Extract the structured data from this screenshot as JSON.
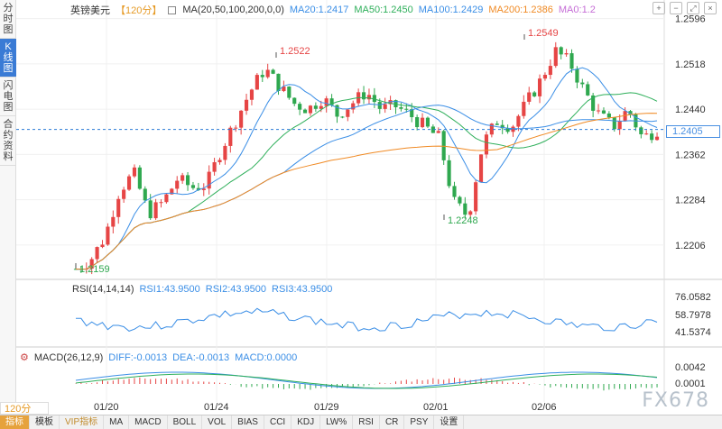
{
  "sidebar": {
    "tabs": [
      {
        "label": "分时图"
      },
      {
        "label": "K线图"
      },
      {
        "label": "闪电图"
      },
      {
        "label": "合约资料"
      }
    ]
  },
  "legend": {
    "symbol": "英镑美元",
    "period": "【120分】",
    "ma_label": "MA(20,50,100,200,0,0)",
    "ma20": "MA20:1.2417",
    "ma50": "MA50:1.2450",
    "ma100": "MA100:1.2429",
    "ma200": "MA200:1.2386",
    "ma0": "MA0:1.2"
  },
  "colors": {
    "up": "#e64545",
    "down": "#2fa84f",
    "ma20": "#3a8ee6",
    "ma50": "#2eaf5a",
    "ma100": "#3a8ee6",
    "ma200": "#f08a24",
    "ma0": "#c56dd6",
    "dashed": "#2a7ad6"
  },
  "price_axis": [
    "1.2596",
    "1.2518",
    "1.2440",
    "1.2362",
    "1.2284",
    "1.2206"
  ],
  "current_price": "1.2405",
  "annotations": {
    "low1": "1.2159",
    "high1": "1.2522",
    "low2": "1.2248",
    "high2": "1.2549"
  },
  "rsi": {
    "label": "RSI(14,14,14)",
    "rsi1": "RSI1:43.9500",
    "rsi2": "RSI2:43.9500",
    "rsi3": "RSI3:43.9500",
    "axis": [
      "76.0582",
      "58.7978",
      "41.5374"
    ]
  },
  "macd": {
    "label": "MACD(26,12,9)",
    "diff": "DIFF:-0.0013",
    "dea": "DEA:-0.0013",
    "macd": "MACD:0.0000",
    "axis": [
      "0.0042",
      "0.0001"
    ]
  },
  "dates": [
    "01/20",
    "01/24",
    "01/29",
    "02/01",
    "02/06"
  ],
  "period_select": "120分",
  "watermark": "FX678",
  "bottom_tabs": [
    "指标",
    "模板",
    "VIP指标",
    "MA",
    "MACD",
    "BOLL",
    "VOL",
    "BIAS",
    "CCI",
    "KDJ",
    "LW%",
    "RSI",
    "CR",
    "PSY",
    "设置"
  ],
  "chart_data": {
    "type": "candlestick",
    "ylim": [
      1.215,
      1.26
    ],
    "x": [
      "01/20",
      "01/24",
      "01/29",
      "02/01",
      "02/06"
    ],
    "close_series": [
      1.2165,
      1.218,
      1.222,
      1.23,
      1.233,
      1.226,
      1.228,
      1.232,
      1.2305,
      1.231,
      1.237,
      1.242,
      1.247,
      1.251,
      1.248,
      1.245,
      1.244,
      1.246,
      1.243,
      1.245,
      1.247,
      1.244,
      1.2445,
      1.243,
      1.241,
      1.239,
      1.228,
      1.2255,
      1.238,
      1.242,
      1.241,
      1.245,
      1.249,
      1.254,
      1.252,
      1.247,
      1.243,
      1.241,
      1.244,
      1.239,
      1.2405
    ]
  }
}
